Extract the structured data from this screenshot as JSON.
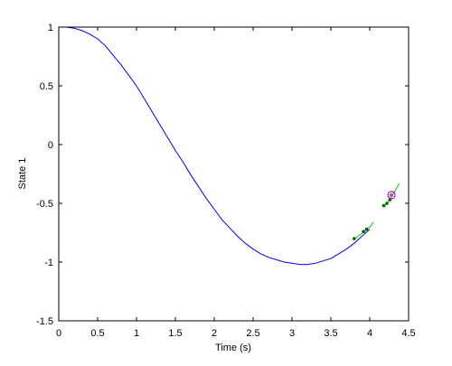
{
  "chart_data": {
    "type": "line",
    "xlabel": "Time (s)",
    "ylabel": "State 1",
    "xlim": [
      0,
      4.5
    ],
    "ylim": [
      -1.5,
      1
    ],
    "xticks": [
      0,
      0.5,
      1,
      1.5,
      2,
      2.5,
      3,
      3.5,
      4,
      4.5
    ],
    "yticks": [
      -1.5,
      -1,
      -0.5,
      0,
      0.5,
      1
    ],
    "xtick_labels": [
      "0",
      "0.5",
      "1",
      "1.5",
      "2",
      "2.5",
      "3",
      "3.5",
      "4",
      "4.5"
    ],
    "ytick_labels": [
      "-1.5",
      "-1",
      "-0.5",
      "0",
      "0.5",
      "1"
    ],
    "grid": false,
    "colors": {
      "trajectory": "#0000ff",
      "prediction": "#00cc00",
      "samples": "#006600",
      "current": "#cc00cc",
      "current_fill": "#7f7f7f"
    },
    "series": [
      {
        "x": [
          0,
          0.1,
          0.2,
          0.3,
          0.4,
          0.5,
          0.6,
          0.7,
          0.8,
          0.9,
          1.0,
          1.1,
          1.2,
          1.3,
          1.4,
          1.5,
          1.6,
          1.7,
          1.8,
          1.9,
          2.0,
          2.1,
          2.2,
          2.3,
          2.4,
          2.5,
          2.6,
          2.7,
          2.8,
          2.9,
          3.0,
          3.1,
          3.2,
          3.3,
          3.4,
          3.5,
          3.6,
          3.7,
          3.8,
          3.9,
          4.0
        ],
        "y": [
          1.0,
          1.0,
          0.99,
          0.97,
          0.94,
          0.9,
          0.84,
          0.76,
          0.68,
          0.59,
          0.5,
          0.39,
          0.28,
          0.17,
          0.06,
          -0.05,
          -0.15,
          -0.26,
          -0.36,
          -0.46,
          -0.55,
          -0.64,
          -0.71,
          -0.78,
          -0.84,
          -0.89,
          -0.93,
          -0.96,
          -0.98,
          -1.0,
          -1.01,
          -1.02,
          -1.02,
          -1.01,
          -0.99,
          -0.97,
          -0.93,
          -0.89,
          -0.84,
          -0.78,
          -0.72
        ]
      },
      {
        "x": [
          3.78,
          3.85,
          3.93,
          4.0,
          4.05
        ],
        "y": [
          -0.81,
          -0.78,
          -0.74,
          -0.7,
          -0.66
        ]
      },
      {
        "x": [
          4.18,
          4.23,
          4.28,
          4.33,
          4.38
        ],
        "y": [
          -0.53,
          -0.49,
          -0.44,
          -0.39,
          -0.33
        ]
      }
    ],
    "markers": {
      "x": [
        3.8,
        3.92,
        3.96,
        4.18,
        4.22,
        4.26
      ],
      "y": [
        -0.8,
        -0.74,
        -0.72,
        -0.52,
        -0.5,
        -0.47
      ]
    },
    "current_point": {
      "x": 4.28,
      "y": -0.43
    }
  }
}
